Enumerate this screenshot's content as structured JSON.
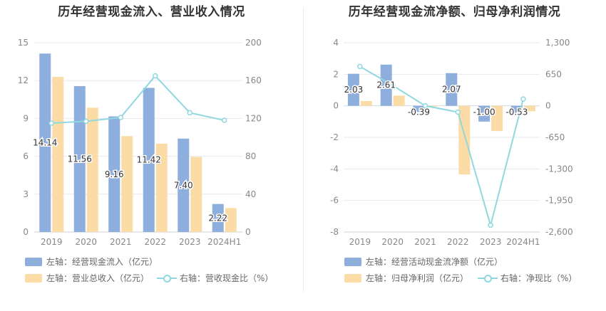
{
  "chart_data": [
    {
      "type": "bar",
      "title": "历年经营现金流入、营业收入情况",
      "categories": [
        "2019",
        "2020",
        "2021",
        "2022",
        "2023",
        "2024H1"
      ],
      "left_axis": {
        "ticks": [
          "0",
          "3",
          "6",
          "9",
          "12",
          "15"
        ],
        "ylim": [
          0,
          15
        ]
      },
      "right_axis": {
        "ticks": [
          "0",
          "40",
          "80",
          "120",
          "160",
          "200"
        ],
        "ylim": [
          0,
          200
        ]
      },
      "series": [
        {
          "name": "左轴：经营现金流入（亿元）",
          "type": "bar",
          "axis": "left",
          "color": "#8eaede",
          "values": [
            14.14,
            11.56,
            9.16,
            11.42,
            7.4,
            2.22
          ],
          "labels": [
            "14.14",
            "11.56",
            "9.16",
            "11.42",
            "7.40",
            "2.22"
          ]
        },
        {
          "name": "左轴：营业总收入（亿元）",
          "type": "bar",
          "axis": "left",
          "color": "#fcdca6",
          "values": [
            12.3,
            9.85,
            7.6,
            7.0,
            5.95,
            1.9
          ]
        },
        {
          "name": "右轴：营收现金比（%）",
          "type": "line",
          "axis": "right",
          "color": "#8fd8df",
          "values": [
            115,
            117,
            121,
            165,
            126,
            118
          ]
        }
      ],
      "grid": true
    },
    {
      "type": "bar",
      "title": "历年经营现金流净额、归母净利润情况",
      "categories": [
        "2019",
        "2020",
        "2021",
        "2022",
        "2023",
        "2024H1"
      ],
      "left_axis": {
        "ticks": [
          "-8",
          "-6",
          "-4",
          "-2",
          "0",
          "2",
          "4"
        ],
        "ylim": [
          -8,
          4
        ]
      },
      "right_axis": {
        "ticks": [
          "-2,600",
          "-1,950",
          "-1,300",
          "-650",
          "0",
          "650",
          "1,300"
        ],
        "ylim": [
          -2600,
          1300
        ]
      },
      "series": [
        {
          "name": "左轴：经营活动现金流净额（亿元）",
          "type": "bar",
          "axis": "left",
          "color": "#8eaede",
          "values": [
            2.03,
            2.61,
            -0.39,
            2.07,
            -1.0,
            -0.53
          ],
          "labels": [
            "2.03",
            "2.61",
            "-0.39",
            "2.07",
            "-1.00",
            "-0.53"
          ]
        },
        {
          "name": "左轴：归母净利润（亿元）",
          "type": "bar",
          "axis": "left",
          "color": "#fcdca6",
          "values": [
            0.3,
            0.65,
            -0.05,
            -4.35,
            -1.6,
            -0.35
          ]
        },
        {
          "name": "右轴：净现比（%）",
          "type": "line",
          "axis": "right",
          "color": "#8fd8df",
          "values": [
            810,
            420,
            0,
            -130,
            -2460,
            140
          ]
        }
      ],
      "grid": true
    }
  ]
}
